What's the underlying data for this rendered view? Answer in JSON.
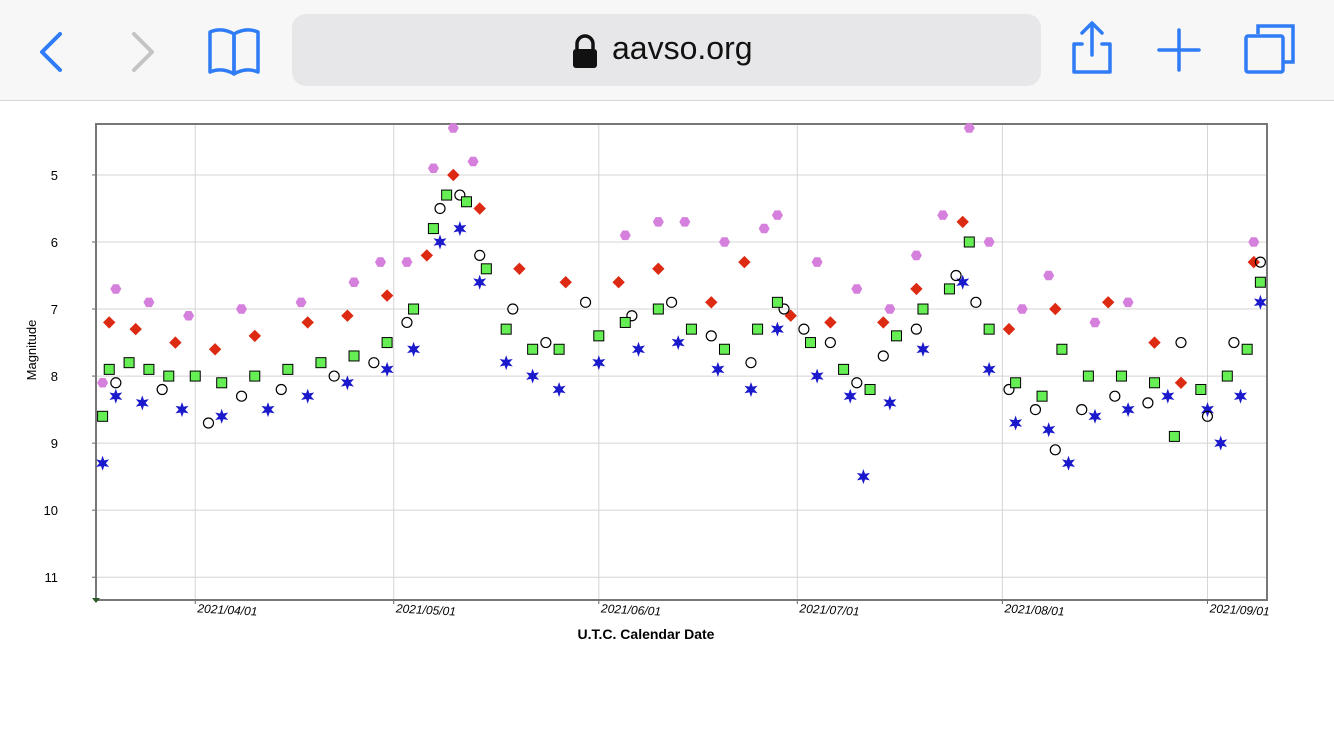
{
  "browser": {
    "url": "aavso.org"
  },
  "chart_data": {
    "type": "scatter",
    "y_label": "Magnitude",
    "x_label": "U.T.C. Calendar Date",
    "xlim": [
      "2021/03/17",
      "2021/09/10"
    ],
    "xticks": [
      "2021/04/01",
      "2021/05/01",
      "2021/06/01",
      "2021/07/01",
      "2021/08/01",
      "2021/09/01"
    ],
    "ylim": [
      11.34,
      4.24
    ],
    "yticks": [
      5,
      6,
      7,
      8,
      9,
      10,
      11
    ],
    "grid": true,
    "series": [
      {
        "color": "#d680dd",
        "marker": "hexagon",
        "filled": true,
        "x": [
          "2021/03/18",
          "2021/03/20",
          "2021/03/25",
          "2021/03/31",
          "2021/04/08",
          "2021/04/17",
          "2021/04/25",
          "2021/04/29",
          "2021/05/03",
          "2021/05/07",
          "2021/05/10",
          "2021/05/13",
          "2021/06/05",
          "2021/06/10",
          "2021/06/14",
          "2021/06/20",
          "2021/06/26",
          "2021/06/28",
          "2021/07/04",
          "2021/07/10",
          "2021/07/15",
          "2021/07/19",
          "2021/07/23",
          "2021/07/27",
          "2021/07/30",
          "2021/08/04",
          "2021/08/08",
          "2021/08/15",
          "2021/08/20",
          "2021/09/08"
        ],
        "values": [
          8.1,
          6.7,
          6.9,
          7.1,
          7.0,
          6.9,
          6.6,
          6.3,
          6.3,
          4.9,
          4.3,
          4.8,
          5.9,
          5.7,
          5.7,
          6.0,
          5.8,
          5.6,
          6.3,
          6.7,
          7.0,
          6.2,
          5.6,
          4.3,
          6.0,
          7.0,
          6.5,
          7.2,
          6.9,
          6.0
        ]
      },
      {
        "color": "#dd2a12",
        "marker": "diamond",
        "filled": true,
        "x": [
          "2021/03/19",
          "2021/03/23",
          "2021/03/29",
          "2021/04/04",
          "2021/04/10",
          "2021/04/18",
          "2021/04/24",
          "2021/04/30",
          "2021/05/06",
          "2021/05/10",
          "2021/05/14",
          "2021/05/20",
          "2021/05/27",
          "2021/06/04",
          "2021/06/10",
          "2021/06/18",
          "2021/06/23",
          "2021/06/30",
          "2021/07/06",
          "2021/07/14",
          "2021/07/19",
          "2021/07/26",
          "2021/08/02",
          "2021/08/09",
          "2021/08/17",
          "2021/08/24",
          "2021/08/28",
          "2021/09/08"
        ],
        "values": [
          7.2,
          7.3,
          7.5,
          7.6,
          7.4,
          7.2,
          7.1,
          6.8,
          6.2,
          5.0,
          5.5,
          6.4,
          6.6,
          6.6,
          6.4,
          6.9,
          6.3,
          7.1,
          7.2,
          7.2,
          6.7,
          5.7,
          7.3,
          7.0,
          6.9,
          7.5,
          8.1,
          6.3
        ]
      },
      {
        "color": "#1a1acc",
        "marker": "star",
        "filled": true,
        "x": [
          "2021/03/18",
          "2021/03/20",
          "2021/03/24",
          "2021/03/30",
          "2021/04/05",
          "2021/04/12",
          "2021/04/18",
          "2021/04/24",
          "2021/04/30",
          "2021/05/04",
          "2021/05/08",
          "2021/05/11",
          "2021/05/14",
          "2021/05/18",
          "2021/05/22",
          "2021/05/26",
          "2021/06/01",
          "2021/06/07",
          "2021/06/13",
          "2021/06/19",
          "2021/06/24",
          "2021/06/28",
          "2021/07/04",
          "2021/07/09",
          "2021/07/11",
          "2021/07/15",
          "2021/07/20",
          "2021/07/26",
          "2021/07/30",
          "2021/08/03",
          "2021/08/08",
          "2021/08/11",
          "2021/08/15",
          "2021/08/20",
          "2021/08/26",
          "2021/09/01",
          "2021/09/03",
          "2021/09/06",
          "2021/09/09"
        ],
        "values": [
          9.3,
          8.3,
          8.4,
          8.5,
          8.6,
          8.5,
          8.3,
          8.1,
          7.9,
          7.6,
          6.0,
          5.8,
          6.6,
          7.8,
          8.0,
          8.2,
          7.8,
          7.6,
          7.5,
          7.9,
          8.2,
          7.3,
          8.0,
          8.3,
          9.5,
          8.4,
          7.6,
          6.6,
          7.9,
          8.7,
          8.8,
          9.3,
          8.6,
          8.5,
          8.3,
          8.5,
          9.0,
          8.3,
          6.9
        ]
      },
      {
        "color": "#000000",
        "marker": "circle",
        "filled": false,
        "x": [
          "2021/03/20",
          "2021/03/27",
          "2021/04/03",
          "2021/04/08",
          "2021/04/14",
          "2021/04/22",
          "2021/04/28",
          "2021/05/03",
          "2021/05/08",
          "2021/05/11",
          "2021/05/14",
          "2021/05/19",
          "2021/05/24",
          "2021/05/30",
          "2021/06/06",
          "2021/06/12",
          "2021/06/18",
          "2021/06/24",
          "2021/06/29",
          "2021/07/02",
          "2021/07/06",
          "2021/07/10",
          "2021/07/14",
          "2021/07/19",
          "2021/07/25",
          "2021/07/28",
          "2021/08/02",
          "2021/08/06",
          "2021/08/09",
          "2021/08/13",
          "2021/08/18",
          "2021/08/23",
          "2021/08/28",
          "2021/09/01",
          "2021/09/05",
          "2021/09/09"
        ],
        "values": [
          8.1,
          8.2,
          8.7,
          8.3,
          8.2,
          8.0,
          7.8,
          7.2,
          5.5,
          5.3,
          6.2,
          7.0,
          7.5,
          6.9,
          7.1,
          6.9,
          7.4,
          7.8,
          7.0,
          7.3,
          7.5,
          8.1,
          7.7,
          7.3,
          6.5,
          6.9,
          8.2,
          8.5,
          9.1,
          8.5,
          8.3,
          8.4,
          7.5,
          8.6,
          7.5,
          6.3
        ]
      },
      {
        "color": "#66ee55",
        "marker": "square",
        "filled": true,
        "x": [
          "2021/03/18",
          "2021/03/19",
          "2021/03/22",
          "2021/03/25",
          "2021/03/28",
          "2021/04/01",
          "2021/04/05",
          "2021/04/10",
          "2021/04/15",
          "2021/04/20",
          "2021/04/25",
          "2021/04/30",
          "2021/05/04",
          "2021/05/07",
          "2021/05/09",
          "2021/05/12",
          "2021/05/15",
          "2021/05/18",
          "2021/05/22",
          "2021/05/26",
          "2021/06/01",
          "2021/06/05",
          "2021/06/10",
          "2021/06/15",
          "2021/06/20",
          "2021/06/25",
          "2021/06/28",
          "2021/07/03",
          "2021/07/08",
          "2021/07/12",
          "2021/07/16",
          "2021/07/20",
          "2021/07/24",
          "2021/07/27",
          "2021/07/30",
          "2021/08/03",
          "2021/08/07",
          "2021/08/10",
          "2021/08/14",
          "2021/08/19",
          "2021/08/24",
          "2021/08/27",
          "2021/08/31",
          "2021/09/04",
          "2021/09/07",
          "2021/09/09"
        ],
        "values": [
          8.6,
          7.9,
          7.8,
          7.9,
          8.0,
          8.0,
          8.1,
          8.0,
          7.9,
          7.8,
          7.7,
          7.5,
          7.0,
          5.8,
          5.3,
          5.4,
          6.4,
          7.3,
          7.6,
          7.6,
          7.4,
          7.2,
          7.0,
          7.3,
          7.6,
          7.3,
          6.9,
          7.5,
          7.9,
          8.2,
          7.4,
          7.0,
          6.7,
          6.0,
          7.3,
          8.1,
          8.3,
          7.6,
          8.0,
          8.0,
          8.1,
          8.9,
          8.2,
          8.0,
          7.6,
          6.6
        ]
      }
    ]
  }
}
